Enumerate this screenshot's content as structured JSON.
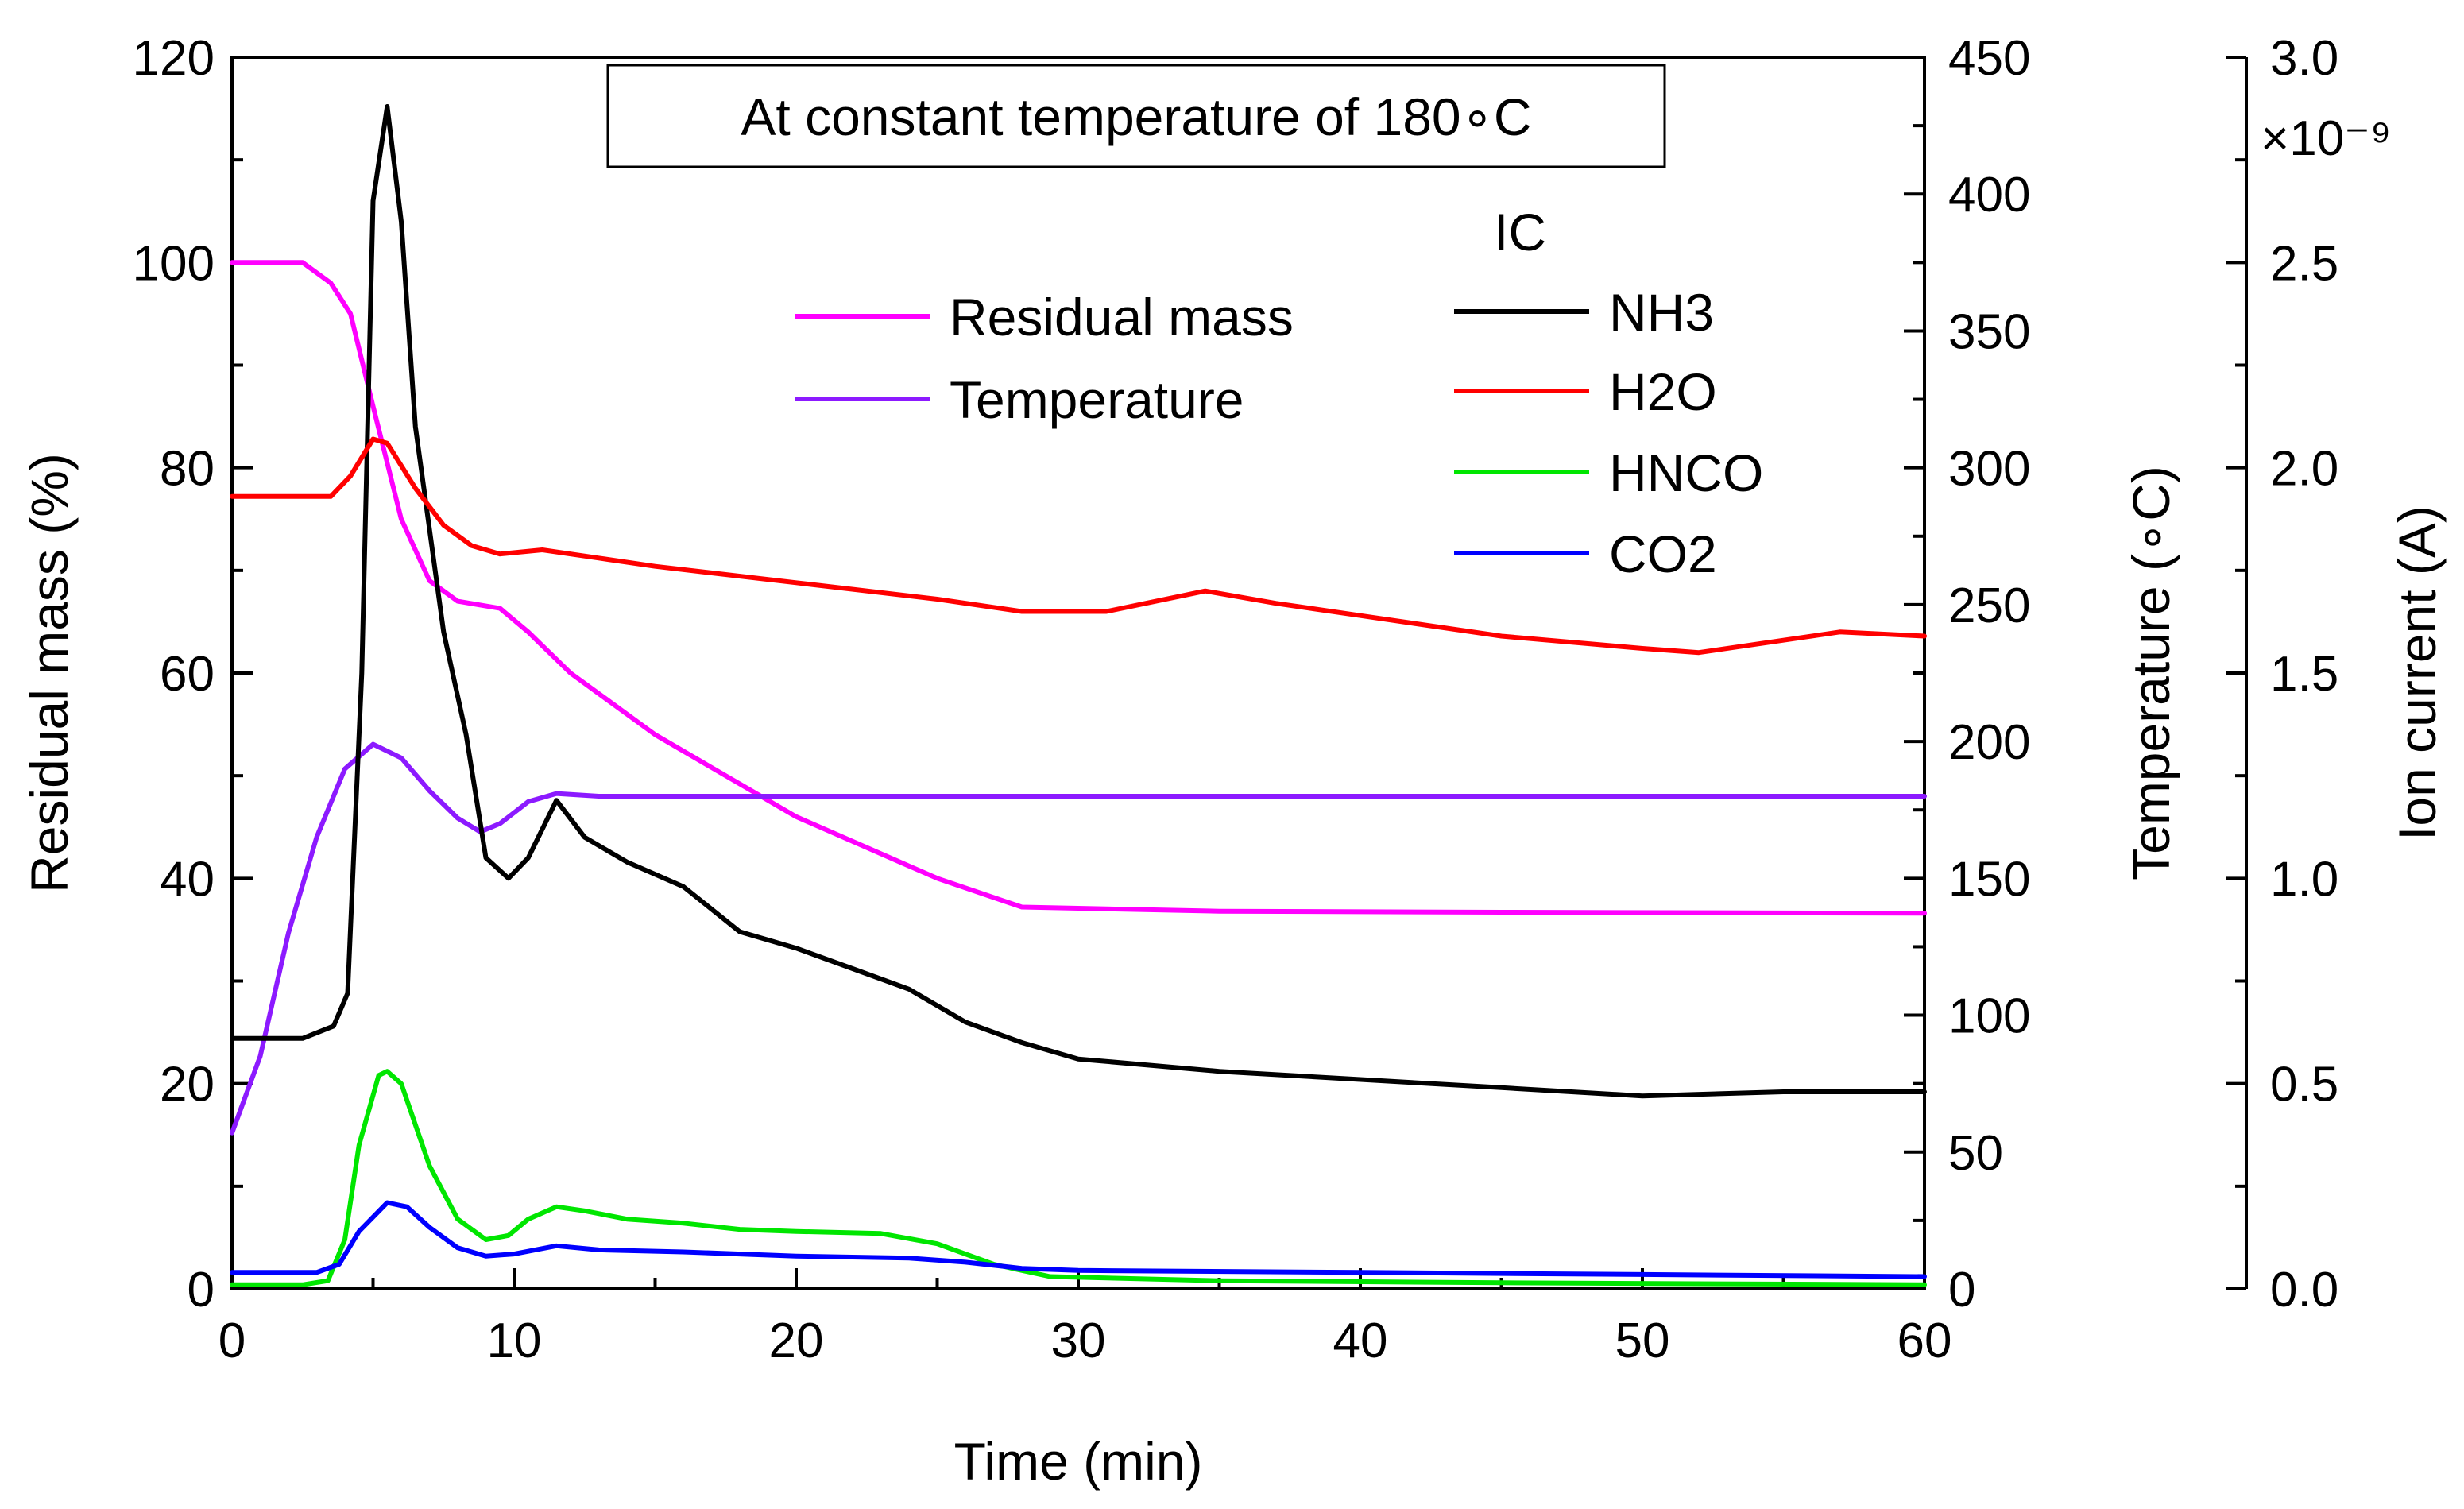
{
  "chart_data": {
    "type": "line",
    "title": "At constant temperature of 180∘C",
    "xlabel": "Time (min)",
    "xlim": [
      0,
      60
    ],
    "x_ticks": [
      "0",
      "10",
      "20",
      "30",
      "40",
      "50",
      "60"
    ],
    "axes": {
      "left": {
        "label": "Residual mass (%)",
        "lim": [
          0,
          120
        ],
        "ticks": [
          "0",
          "20",
          "40",
          "60",
          "80",
          "100",
          "120"
        ]
      },
      "right1": {
        "label": "Temperature (∘C)",
        "lim": [
          0,
          450
        ],
        "ticks": [
          "0",
          "50",
          "100",
          "150",
          "200",
          "250",
          "300",
          "350",
          "400",
          "450"
        ]
      },
      "right2": {
        "label": "Ion current (A)",
        "lim": [
          0,
          3.0
        ],
        "ticks": [
          "0.0",
          "0.5",
          "1.0",
          "1.5",
          "2.0",
          "2.5",
          "3.0"
        ],
        "multiplier": "×10⁻⁹"
      }
    },
    "legend_group_title": "IC",
    "series": [
      {
        "name": "Residual mass",
        "axis": "left",
        "color": "#ff00ff",
        "points": [
          [
            0,
            100
          ],
          [
            2.5,
            100
          ],
          [
            3.5,
            98
          ],
          [
            4.2,
            95
          ],
          [
            5,
            86
          ],
          [
            6,
            75
          ],
          [
            7,
            69
          ],
          [
            8,
            67
          ],
          [
            9.5,
            66.3
          ],
          [
            10.5,
            64
          ],
          [
            12,
            60
          ],
          [
            15,
            54
          ],
          [
            20,
            46
          ],
          [
            25,
            40
          ],
          [
            28,
            37.2
          ],
          [
            35,
            36.8
          ],
          [
            45,
            36.7
          ],
          [
            60,
            36.6
          ]
        ]
      },
      {
        "name": "Temperature",
        "axis": "right1",
        "color": "#8c1aff",
        "points": [
          [
            0,
            57
          ],
          [
            1,
            85
          ],
          [
            2,
            130
          ],
          [
            3,
            165
          ],
          [
            4,
            190
          ],
          [
            5,
            199
          ],
          [
            6,
            194
          ],
          [
            7,
            182
          ],
          [
            8,
            172
          ],
          [
            8.8,
            167
          ],
          [
            9.5,
            170
          ],
          [
            10.5,
            178
          ],
          [
            11.5,
            181
          ],
          [
            13,
            180
          ],
          [
            20,
            180
          ],
          [
            40,
            180
          ],
          [
            60,
            180
          ]
        ]
      },
      {
        "name": "NH3",
        "axis": "right2",
        "color": "#000000",
        "points": [
          [
            0,
            0.61
          ],
          [
            2.5,
            0.61
          ],
          [
            3.6,
            0.64
          ],
          [
            4.1,
            0.72
          ],
          [
            4.6,
            1.5
          ],
          [
            5,
            2.65
          ],
          [
            5.5,
            2.88
          ],
          [
            6,
            2.6
          ],
          [
            6.5,
            2.1
          ],
          [
            7.5,
            1.6
          ],
          [
            8.3,
            1.35
          ],
          [
            9,
            1.05
          ],
          [
            9.8,
            1.0
          ],
          [
            10.5,
            1.05
          ],
          [
            11.5,
            1.19
          ],
          [
            12.5,
            1.1
          ],
          [
            14,
            1.04
          ],
          [
            16,
            0.98
          ],
          [
            18,
            0.87
          ],
          [
            20,
            0.83
          ],
          [
            22,
            0.78
          ],
          [
            24,
            0.73
          ],
          [
            26,
            0.65
          ],
          [
            28,
            0.6
          ],
          [
            30,
            0.56
          ],
          [
            35,
            0.53
          ],
          [
            40,
            0.51
          ],
          [
            45,
            0.49
          ],
          [
            50,
            0.47
          ],
          [
            55,
            0.48
          ],
          [
            60,
            0.48
          ]
        ]
      },
      {
        "name": "H2O",
        "axis": "right2",
        "color": "#ff0000",
        "points": [
          [
            0,
            1.93
          ],
          [
            3.5,
            1.93
          ],
          [
            4.2,
            1.98
          ],
          [
            5,
            2.07
          ],
          [
            5.5,
            2.06
          ],
          [
            6.5,
            1.95
          ],
          [
            7.5,
            1.86
          ],
          [
            8.5,
            1.81
          ],
          [
            9.5,
            1.79
          ],
          [
            11,
            1.8
          ],
          [
            13,
            1.78
          ],
          [
            15,
            1.76
          ],
          [
            20,
            1.72
          ],
          [
            25,
            1.68
          ],
          [
            28,
            1.65
          ],
          [
            31,
            1.65
          ],
          [
            34.5,
            1.7
          ],
          [
            37,
            1.67
          ],
          [
            40,
            1.64
          ],
          [
            45,
            1.59
          ],
          [
            50,
            1.56
          ],
          [
            52,
            1.55
          ],
          [
            55,
            1.58
          ],
          [
            57,
            1.6
          ],
          [
            60,
            1.59
          ]
        ]
      },
      {
        "name": "HNCO",
        "axis": "right2",
        "color": "#00e600",
        "points": [
          [
            0,
            0.01
          ],
          [
            2.5,
            0.01
          ],
          [
            3.4,
            0.02
          ],
          [
            4,
            0.12
          ],
          [
            4.5,
            0.35
          ],
          [
            5.2,
            0.52
          ],
          [
            5.5,
            0.53
          ],
          [
            6,
            0.5
          ],
          [
            7,
            0.3
          ],
          [
            8,
            0.17
          ],
          [
            9,
            0.12
          ],
          [
            9.8,
            0.13
          ],
          [
            10.5,
            0.17
          ],
          [
            11.5,
            0.2
          ],
          [
            12.5,
            0.19
          ],
          [
            14,
            0.17
          ],
          [
            16,
            0.16
          ],
          [
            18,
            0.145
          ],
          [
            20,
            0.14
          ],
          [
            23,
            0.135
          ],
          [
            25,
            0.11
          ],
          [
            27,
            0.06
          ],
          [
            29,
            0.03
          ],
          [
            35,
            0.02
          ],
          [
            45,
            0.015
          ],
          [
            60,
            0.01
          ]
        ]
      },
      {
        "name": "CO2",
        "axis": "right2",
        "color": "#0000ff",
        "points": [
          [
            0,
            0.04
          ],
          [
            3,
            0.04
          ],
          [
            3.8,
            0.06
          ],
          [
            4.5,
            0.14
          ],
          [
            5.5,
            0.21
          ],
          [
            6.2,
            0.2
          ],
          [
            7,
            0.15
          ],
          [
            8,
            0.1
          ],
          [
            9,
            0.08
          ],
          [
            10,
            0.085
          ],
          [
            11.5,
            0.105
          ],
          [
            13,
            0.095
          ],
          [
            16,
            0.09
          ],
          [
            20,
            0.08
          ],
          [
            24,
            0.075
          ],
          [
            26,
            0.065
          ],
          [
            28,
            0.05
          ],
          [
            30,
            0.045
          ],
          [
            40,
            0.04
          ],
          [
            50,
            0.035
          ],
          [
            60,
            0.03
          ]
        ]
      }
    ]
  }
}
